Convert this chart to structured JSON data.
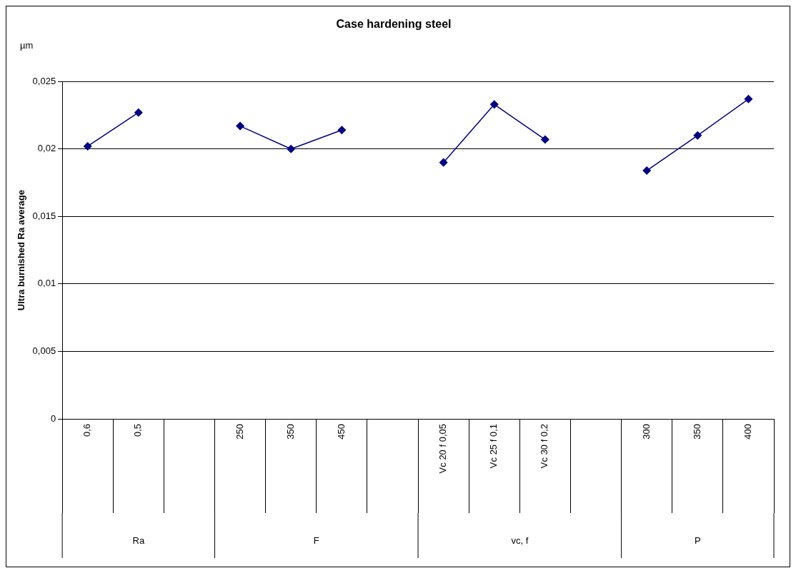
{
  "chart_data": {
    "type": "line",
    "title": "Case hardening steel",
    "subtitle": "µm",
    "ylabel": "Ultra burnished Ra average",
    "categories": [
      "0,6",
      "0,5",
      null,
      "250",
      "350",
      "450",
      null,
      "Vc 20 f 0,05",
      "Vc 25 f 0,1",
      "Vc 30 f 0,2",
      null,
      "300",
      "350",
      "400"
    ],
    "series": [
      {
        "color": "#000080",
        "values": [
          0.0202,
          0.0227,
          null,
          0.0217,
          0.02,
          0.0214,
          null,
          0.019,
          0.0233,
          0.0207,
          null,
          0.0184,
          0.021,
          0.0237
        ]
      }
    ],
    "ylim": [
      0,
      0.025
    ],
    "yticks": [
      {
        "value": 0,
        "label": "0"
      },
      {
        "value": 0.005,
        "label": "0,005"
      },
      {
        "value": 0.01,
        "label": "0,01"
      },
      {
        "value": 0.015,
        "label": "0,015"
      },
      {
        "value": 0.02,
        "label": "0,02"
      },
      {
        "value": 0.025,
        "label": "0,025"
      }
    ],
    "grid": "y",
    "legend": false,
    "marker": "diamond",
    "line_style": "solid",
    "annotations": [
      "Ra",
      "F",
      "vc, f",
      "P"
    ]
  }
}
